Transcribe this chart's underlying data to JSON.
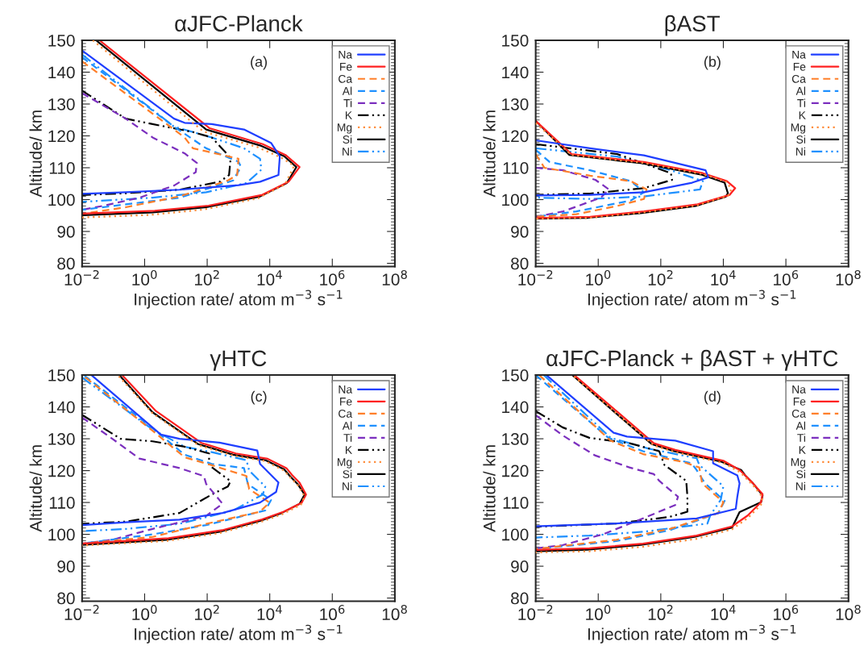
{
  "chart_data": [
    {
      "type": "line",
      "title": "αJFC-Planck",
      "xlabel": "Injection rate/ atom m$^{−3}$ s$^{−1}$",
      "ylabel": "Altitude/ km",
      "annotations": [
        "(a)"
      ],
      "log": "x",
      "legend": "top right",
      "xlim": [
        0.01,
        100000000
      ],
      "xticks": [
        {
          "value": 0.01,
          "label": "10$^{−2}$"
        },
        {
          "value": 1,
          "label": "10$^{0}$"
        },
        {
          "value": 100,
          "label": "10$^{2}$"
        },
        {
          "value": 10000,
          "label": "10$^{4}$"
        },
        {
          "value": 1000000,
          "label": "10$^{6}$"
        },
        {
          "value": 100000000,
          "label": "10$^{8}$"
        }
      ],
      "ylim": [
        79,
        150
      ],
      "yticks": [
        80,
        90,
        100,
        110,
        120,
        130,
        140,
        150
      ],
      "series": [
        {
          "name": "Na",
          "color": "#1f3fff",
          "line_style": "solid",
          "x": [
            0.01,
            8.7,
            19,
            140,
            1500,
            11000.0,
            21000.0,
            19000.0,
            4900,
            1000,
            13,
            0.25,
            0.01
          ],
          "values": [
            146.8,
            125.4,
            124.1,
            123.7,
            122,
            117.8,
            113.6,
            107.7,
            105.6,
            104.5,
            103.1,
            102.3,
            101.8
          ]
        },
        {
          "name": "Fe",
          "color": "#ff2020",
          "line_style": "solid",
          "x": [
            0.036,
            120,
            6000,
            32000.0,
            90000.0,
            40000.0,
            5800,
            110,
            2.1,
            0.01
          ],
          "values": [
            150,
            122.4,
            117.4,
            114,
            110.2,
            105.6,
            101.5,
            98.1,
            96.5,
            95.6
          ]
        },
        {
          "name": "Ca",
          "color": "#ff7f2a",
          "line_style": "dashed",
          "x": [
            0.01,
            8.7,
            19,
            35,
            310,
            1000,
            910,
            460,
            13,
            0.25,
            0.01
          ],
          "values": [
            143.4,
            122,
            119.5,
            116.1,
            114,
            112.8,
            107.7,
            106,
            101,
            97.6,
            95.5
          ]
        },
        {
          "name": "Al",
          "color": "#1e90ff",
          "line_style": "dashed",
          "x": [
            0.01,
            8.7,
            93,
            1000,
            1200,
            680,
            13,
            0.25,
            0.01
          ],
          "values": [
            144.7,
            122.9,
            116.1,
            111.9,
            110.3,
            106,
            100.6,
            98.5,
            96.8
          ]
        },
        {
          "name": "Ti",
          "color": "#7b2fbe",
          "line_style": "dashed",
          "x": [
            0.01,
            0.25,
            1.8,
            19,
            47,
            43,
            8.7,
            0.68,
            0.051,
            0.01
          ],
          "values": [
            133.4,
            125.4,
            119.5,
            114.5,
            111.5,
            108.6,
            104.4,
            100.6,
            98.1,
            96.8
          ]
        },
        {
          "name": "K",
          "color": "#000000",
          "line_style": "dashdotdot",
          "x": [
            0.01,
            0.25,
            1.8,
            35,
            140,
            460,
            560,
            500,
            250,
            13,
            0.25,
            0.01
          ],
          "values": [
            134.2,
            125.4,
            123.7,
            121.2,
            119.5,
            114,
            112.8,
            107.7,
            105.6,
            103.1,
            102,
            101.4
          ]
        },
        {
          "name": "Mg",
          "color": "#ff8c3a",
          "line_style": "dotted",
          "x": [
            0.022,
            75,
            4000,
            25000.0,
            60000.0,
            31000.0,
            4200,
            80,
            1.5,
            0.01
          ],
          "values": [
            150,
            121.4,
            116.5,
            113,
            110.6,
            104.8,
            100.4,
            96.9,
            95.2,
            94.4
          ]
        },
        {
          "name": "Si",
          "color": "#000000",
          "line_style": "solid",
          "x": [
            0.028,
            93,
            4900,
            29000.0,
            71000.0,
            35000.0,
            4900,
            93,
            1.8,
            0.01
          ],
          "values": [
            150,
            122,
            117,
            113.6,
            110.2,
            105.2,
            101,
            97.6,
            96,
            95.1
          ]
        },
        {
          "name": "Ni",
          "color": "#1e90ff",
          "line_style": "dashdotdot",
          "x": [
            0.01,
            8.7,
            140,
            1500,
            4900,
            5400,
            1800,
            93,
            1.8,
            0.01
          ],
          "values": [
            145.5,
            122.9,
            119.5,
            116.1,
            112.8,
            109.4,
            105.2,
            102.3,
            100.6,
            99.3
          ]
        }
      ]
    },
    {
      "type": "line",
      "title": "βAST",
      "xlabel": "Injection rate/ atom m$^{−3}$ s$^{−1}$",
      "ylabel": "Altitude/ km",
      "annotations": [
        "(b)"
      ],
      "log": "x",
      "legend": "top right",
      "xlim": [
        0.01,
        100000000
      ],
      "xticks": [
        {
          "value": 0.01,
          "label": "10$^{−2}$"
        },
        {
          "value": 1,
          "label": "10$^{0}$"
        },
        {
          "value": 100,
          "label": "10$^{2}$"
        },
        {
          "value": 10000,
          "label": "10$^{4}$"
        },
        {
          "value": 1000000,
          "label": "10$^{6}$"
        },
        {
          "value": 100000000,
          "label": "10$^{8}$"
        }
      ],
      "ylim": [
        79,
        150
      ],
      "yticks": [
        80,
        90,
        100,
        110,
        120,
        130,
        140,
        150
      ],
      "series": [
        {
          "name": "Na",
          "color": "#1f3fff",
          "line_style": "solid",
          "x": [
            0.01,
            0.55,
            29,
            2700,
            3300,
            1000,
            29,
            0.55,
            0.01
          ],
          "values": [
            118.6,
            116.1,
            113.9,
            109.2,
            107,
            105.3,
            102.3,
            101.5,
            101.3
          ]
        },
        {
          "name": "Fe",
          "color": "#ff2020",
          "line_style": "solid",
          "x": [
            0.01,
            0.14,
            29,
            2200,
            13000.0,
            24000.0,
            16000.0,
            1500,
            29,
            0.55,
            0.01
          ],
          "values": [
            124.7,
            114.3,
            111.8,
            108.3,
            105.8,
            103.6,
            101.5,
            98.5,
            96.3,
            94.6,
            94.2
          ]
        },
        {
          "name": "Ca",
          "color": "#ff7f2a",
          "line_style": "dashed",
          "x": [
            0.01,
            0.019,
            0.55,
            11,
            35,
            29,
            4,
            0.2,
            0.01
          ],
          "values": [
            114.3,
            110,
            107.5,
            105.8,
            103.2,
            100.2,
            98,
            95.4,
            94.6
          ]
        },
        {
          "name": "Al",
          "color": "#1e90ff",
          "line_style": "dashed",
          "x": [
            0.01,
            0.028,
            0.55,
            11,
            29,
            11,
            0.2,
            0.01
          ],
          "values": [
            115.6,
            111.8,
            109.2,
            105.8,
            102.3,
            99.7,
            96.3,
            94.6
          ]
        },
        {
          "name": "Ti",
          "color": "#7b2fbe",
          "line_style": "dashed",
          "x": [
            0.01,
            0.076,
            0.81,
            2.2,
            1.2,
            0.076,
            0.01
          ],
          "values": [
            110,
            109.2,
            106.2,
            103.2,
            100.6,
            96.3,
            94.6
          ]
        },
        {
          "name": "K",
          "color": "#000000",
          "line_style": "dashdotdot",
          "x": [
            0.01,
            4,
            210,
            230,
            29,
            0.55,
            0.01
          ],
          "values": [
            117.4,
            114.3,
            108.3,
            106.2,
            103.6,
            101.9,
            101.5
          ]
        },
        {
          "name": "Mg",
          "color": "#ff8c3a",
          "line_style": "dotted",
          "x": [
            0.01,
            0.14,
            29,
            2200,
            13000.0,
            18000.0,
            14000.0,
            1500,
            29,
            0.55,
            0.01
          ],
          "values": [
            124,
            114,
            111.5,
            108,
            105.5,
            103.2,
            101.2,
            98.2,
            96,
            94.3,
            94
          ]
        },
        {
          "name": "Si",
          "color": "#000000",
          "line_style": "solid",
          "x": [
            0.01,
            0.12,
            25,
            1900,
            11000.0,
            14000.0,
            12000.0,
            1300,
            25,
            0.48,
            0.01
          ],
          "values": [
            124.7,
            114,
            111.4,
            107.9,
            105.3,
            102,
            100.9,
            98,
            95.8,
            94.3,
            94
          ]
        },
        {
          "name": "Ni",
          "color": "#1e90ff",
          "line_style": "dashdotdot",
          "x": [
            0.01,
            4,
            210,
            2200,
            1800,
            29,
            0.55,
            0.01
          ],
          "values": [
            116.1,
            113.5,
            109.2,
            105.8,
            103.2,
            101,
            100.2,
            100.6
          ]
        }
      ]
    },
    {
      "type": "line",
      "title": "γHTC",
      "xlabel": "Injection rate/ atom m$^{−3}$ s$^{−1}$",
      "ylabel": "Altitude/ km",
      "annotations": [
        "(c)"
      ],
      "log": "x",
      "legend": "top right",
      "xlim": [
        0.01,
        100000000
      ],
      "xticks": [
        {
          "value": 0.01,
          "label": "10$^{−2}$"
        },
        {
          "value": 1,
          "label": "10$^{0}$"
        },
        {
          "value": 100,
          "label": "10$^{2}$"
        },
        {
          "value": 10000,
          "label": "10$^{4}$"
        },
        {
          "value": 1000000,
          "label": "10$^{6}$"
        },
        {
          "value": 100000000,
          "label": "10$^{8}$"
        }
      ],
      "ylim": [
        79,
        150
      ],
      "yticks": [
        80,
        90,
        100,
        110,
        120,
        130,
        140,
        150
      ],
      "series": [
        {
          "name": "Na",
          "color": "#1f3fff",
          "line_style": "solid",
          "x": [
            0.021,
            3.3,
            13,
            250,
            4000,
            4900,
            19000.0,
            16000.0,
            4900,
            310,
            13,
            0.25,
            0.01
          ],
          "values": [
            149.8,
            131.3,
            130,
            128.8,
            126.3,
            122.1,
            116.3,
            113.3,
            110,
            106.7,
            104.6,
            103.8,
            102.9
          ]
        },
        {
          "name": "Fe",
          "color": "#ff2020",
          "line_style": "solid",
          "x": [
            0.19,
            2.3,
            65,
            820,
            8600,
            34000.0,
            51000.0,
            90000.0,
            145000.0,
            105000.0,
            28000.0,
            5700,
            300,
            5.8,
            0.01
          ],
          "values": [
            150,
            138.7,
            128.7,
            125.4,
            123.7,
            120.8,
            118.7,
            116.2,
            112.5,
            109.9,
            107.1,
            104.7,
            101.3,
            98.8,
            97.1
          ]
        },
        {
          "name": "Ca",
          "color": "#ff7f2a",
          "line_style": "dashed",
          "x": [
            0.013,
            1.8,
            19,
            140,
            1800,
            2200,
            9800,
            4900,
            93,
            1.8,
            0.01
          ],
          "values": [
            149.2,
            132.5,
            124.2,
            121.7,
            118.3,
            114.2,
            110,
            107.1,
            103.3,
            99.2,
            97.1
          ]
        },
        {
          "name": "Al",
          "color": "#1e90ff",
          "line_style": "dashed",
          "x": [
            0.012,
            1.8,
            19,
            140,
            1500,
            2000,
            11000.0,
            7200,
            93,
            1.8,
            0.01
          ],
          "values": [
            149.8,
            133.3,
            125,
            122.1,
            120.8,
            115.8,
            110.8,
            107.5,
            102.9,
            100,
            97.1
          ]
        },
        {
          "name": "Ti",
          "color": "#7b2fbe",
          "line_style": "dashed",
          "x": [
            0.01,
            0.093,
            0.68,
            13,
            78,
            93,
            310,
            93,
            1.8,
            0.093,
            0.01
          ],
          "values": [
            136.7,
            130,
            123.8,
            120.8,
            118.3,
            115.8,
            109.6,
            105.8,
            101.7,
            98.3,
            97.1
          ]
        },
        {
          "name": "K",
          "color": "#000000",
          "line_style": "dashdotdot",
          "x": [
            0.01,
            0.17,
            1.8,
            19,
            115,
            115,
            560,
            460,
            140,
            13,
            0.25,
            0.01
          ],
          "values": [
            137.5,
            130,
            129.2,
            127.5,
            125.4,
            121.7,
            116.7,
            115,
            112.5,
            106.7,
            104,
            103.3
          ]
        },
        {
          "name": "Mg",
          "color": "#ff8c3a",
          "line_style": "dotted",
          "x": [
            0.15,
            1.8,
            52,
            680,
            7200,
            29000.0,
            44000.0,
            78000.0,
            130000.0,
            100000.0,
            24000.0,
            4900,
            250,
            4.9,
            0.01
          ],
          "values": [
            149.6,
            138,
            128,
            124.7,
            123,
            120,
            118,
            115.5,
            112,
            109.3,
            106.2,
            103.8,
            100.4,
            97.9,
            96.5
          ]
        },
        {
          "name": "Si",
          "color": "#000000",
          "line_style": "solid",
          "x": [
            0.16,
            1.8,
            52,
            680,
            7200,
            29000.0,
            44000.0,
            78000.0,
            130000.0,
            90000.0,
            24000.0,
            4900,
            250,
            4.9,
            0.01
          ],
          "values": [
            149.8,
            138.3,
            128.3,
            125,
            123.3,
            120.4,
            118.3,
            115.8,
            112.5,
            109.6,
            106.7,
            104.2,
            100.8,
            98.3,
            96.7
          ]
        },
        {
          "name": "Ni",
          "color": "#1e90ff",
          "line_style": "dashdotdot",
          "x": [
            0.01,
            1.8,
            19,
            140,
            1800,
            2200,
            7200,
            6000,
            680,
            13,
            0.25,
            0.01
          ],
          "values": [
            149.2,
            132.9,
            127.5,
            125.8,
            123.3,
            120,
            115,
            112.5,
            107.5,
            103.3,
            101.7,
            101
          ]
        }
      ]
    },
    {
      "type": "line",
      "title": "αJFC-Planck + βAST + γHTC",
      "xlabel": "Injection rate/ atom m$^{−3}$ s$^{−1}$",
      "ylabel": "Altitude/ km",
      "annotations": [
        "(d)"
      ],
      "log": "x",
      "legend": "top right",
      "xlim": [
        0.01,
        100000000
      ],
      "xticks": [
        {
          "value": 0.01,
          "label": "10$^{−2}$"
        },
        {
          "value": 1,
          "label": "10$^{0}$"
        },
        {
          "value": 100,
          "label": "10$^{2}$"
        },
        {
          "value": 10000,
          "label": "10$^{4}$"
        },
        {
          "value": 1000000,
          "label": "10$^{6}$"
        },
        {
          "value": 100000000,
          "label": "10$^{8}$"
        }
      ],
      "ylim": [
        79,
        150
      ],
      "yticks": [
        80,
        90,
        100,
        110,
        120,
        130,
        140,
        150
      ],
      "series": [
        {
          "name": "Na",
          "color": "#1f3fff",
          "line_style": "solid",
          "x": [
            0.022,
            3.1,
            8.3,
            290,
            4700,
            4700,
            28000.0,
            33000.0,
            28000.0,
            25000.0,
            1400,
            3.8,
            0.01
          ],
          "values": [
            150,
            131.9,
            130.7,
            129.4,
            126.1,
            122.3,
            118.5,
            116,
            111.8,
            108,
            105,
            103.4,
            102.5
          ]
        },
        {
          "name": "Fe",
          "color": "#ff2020",
          "line_style": "solid",
          "x": [
            0.17,
            3.8,
            60,
            290,
            10000.0,
            33000.0,
            50000.0,
            89000.0,
            180000.0,
            160000.0,
            60000.0,
            19000.0,
            1400,
            27,
            0.52,
            0.01
          ],
          "values": [
            150,
            138.7,
            128.6,
            126.5,
            123.1,
            120.2,
            118.5,
            116,
            112.6,
            110.1,
            105.9,
            102.5,
            99.6,
            97.1,
            95.6,
            95.1
          ]
        },
        {
          "name": "Ca",
          "color": "#ff7f2a",
          "line_style": "dashed",
          "x": [
            0.013,
            2.5,
            27,
            525,
            1700,
            2100,
            10000.0,
            6900,
            195,
            3.8,
            0.01
          ],
          "values": [
            150,
            129.4,
            125.2,
            122.7,
            121,
            116,
            110.1,
            106.7,
            101.7,
            98.3,
            95.4
          ]
        },
        {
          "name": "Al",
          "color": "#1e90ff",
          "line_style": "dashed",
          "x": [
            0.01,
            2.1,
            27,
            950,
            1400,
            2600,
            11000.0,
            6900,
            195,
            3.8,
            0.01
          ],
          "values": [
            150,
            130.3,
            126.1,
            122.3,
            120.2,
            116,
            110.5,
            106.7,
            101.3,
            97.9,
            95.4
          ]
        },
        {
          "name": "Ti",
          "color": "#7b2fbe",
          "line_style": "dashed",
          "x": [
            0.01,
            0.072,
            0.78,
            10,
            60,
            89,
            355,
            290,
            27,
            1.4,
            0.072,
            0.01
          ],
          "values": [
            137.4,
            131.1,
            124.8,
            121,
            118.9,
            116.8,
            111.8,
            109.2,
            105,
            100,
            96.6,
            95.6
          ]
        },
        {
          "name": "K",
          "color": "#000000",
          "line_style": "dashdotdot",
          "x": [
            0.01,
            0.072,
            0.52,
            10,
            89,
            130,
            650,
            710,
            710,
            195,
            3.8,
            0.01
          ],
          "values": [
            138.7,
            133.6,
            130.3,
            128.6,
            126.1,
            121.8,
            116.8,
            111.8,
            107.1,
            105.5,
            103.4,
            102.4
          ]
        },
        {
          "name": "Mg",
          "color": "#ff8c3a",
          "line_style": "dotted",
          "x": [
            0.17,
            3.8,
            60,
            290,
            10000.0,
            33000.0,
            50000.0,
            89000.0,
            180000.0,
            160000.0,
            60000.0,
            19000.0,
            1400,
            27,
            0.52,
            0.01
          ],
          "values": [
            149.5,
            138,
            127.9,
            125.8,
            122.4,
            119.6,
            117.9,
            115.4,
            111.7,
            109.3,
            105.1,
            101.6,
            98.6,
            96.1,
            94.7,
            94.3
          ]
        },
        {
          "name": "Si",
          "color": "#000000",
          "line_style": "solid",
          "x": [
            0.15,
            3.3,
            52,
            250,
            8600,
            37000.0,
            50000.0,
            89000.0,
            180000.0,
            160000.0,
            33000.0,
            19000.0,
            1200,
            23,
            0.45,
            0.01
          ],
          "values": [
            150,
            138.4,
            128.3,
            126.2,
            122.8,
            120.2,
            118.5,
            116,
            112.2,
            110.1,
            107,
            102.1,
            99.2,
            96.7,
            95.2,
            94.7
          ]
        },
        {
          "name": "Ni",
          "color": "#1e90ff",
          "line_style": "dashdotdot",
          "x": [
            0.018,
            2.5,
            41,
            1400,
            1700,
            10000.0,
            8300,
            3800,
            3100,
            27,
            0.52,
            0.01
          ],
          "values": [
            150,
            130.3,
            126.9,
            123.9,
            121.8,
            115.1,
            110.9,
            105.9,
            103.4,
            100.8,
            99.6,
            99
          ]
        }
      ]
    }
  ]
}
